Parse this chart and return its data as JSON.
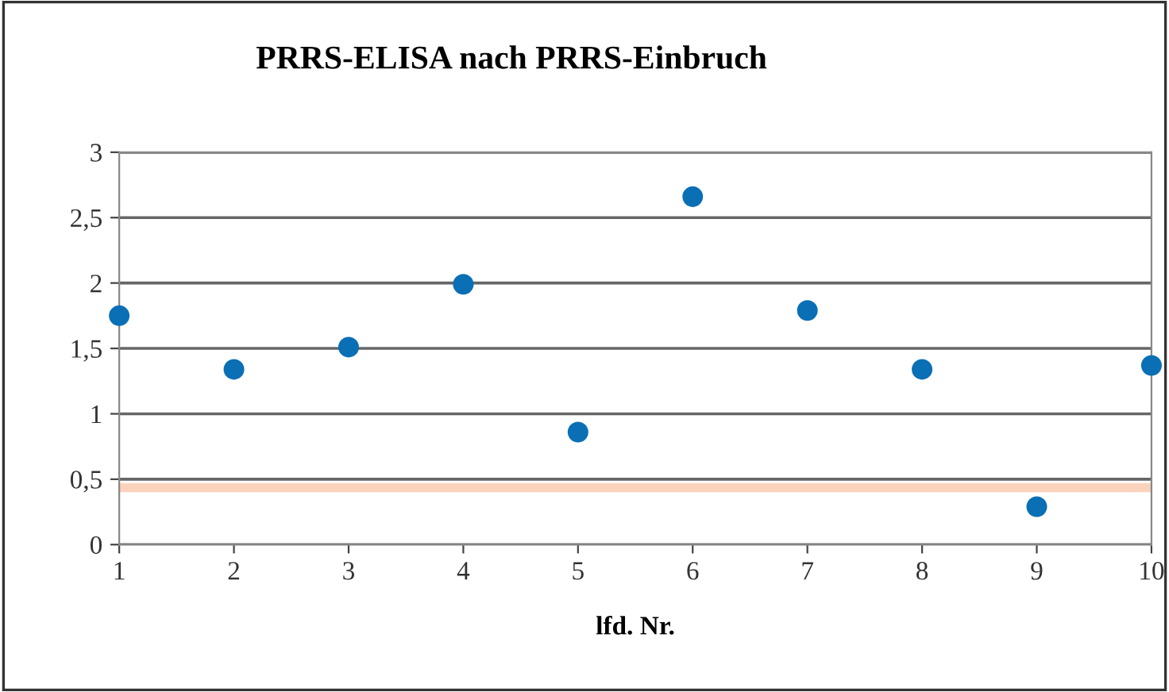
{
  "chart_data": {
    "type": "scatter",
    "title": "PRRS-ELISA nach PRRS-Einbruch",
    "xlabel": "lfd. Nr.",
    "x": [
      1,
      2,
      3,
      4,
      5,
      6,
      7,
      8,
      9,
      10
    ],
    "series": [
      {
        "color": "#0b6fb5",
        "values": [
          1.75,
          1.34,
          1.51,
          1.99,
          0.86,
          2.66,
          1.79,
          1.34,
          0.29,
          1.37
        ]
      }
    ],
    "xlim": [
      1,
      10
    ],
    "xticks": [
      1,
      2,
      3,
      4,
      5,
      6,
      7,
      8,
      9,
      10
    ],
    "ylim": [
      0,
      3
    ],
    "yticks": [
      {
        "value": 0,
        "label": "0"
      },
      {
        "value": 0.5,
        "label": "0,5"
      },
      {
        "value": 1,
        "label": "1"
      },
      {
        "value": 1.5,
        "label": "1,5"
      },
      {
        "value": 2,
        "label": "2"
      },
      {
        "value": 2.5,
        "label": "2,5"
      },
      {
        "value": 3,
        "label": "3"
      }
    ],
    "bands": [
      {
        "axis": "y",
        "from": 0.4,
        "to": 0.47,
        "color": "#fbd3bd"
      }
    ],
    "grid": "y",
    "marker": "circle"
  }
}
